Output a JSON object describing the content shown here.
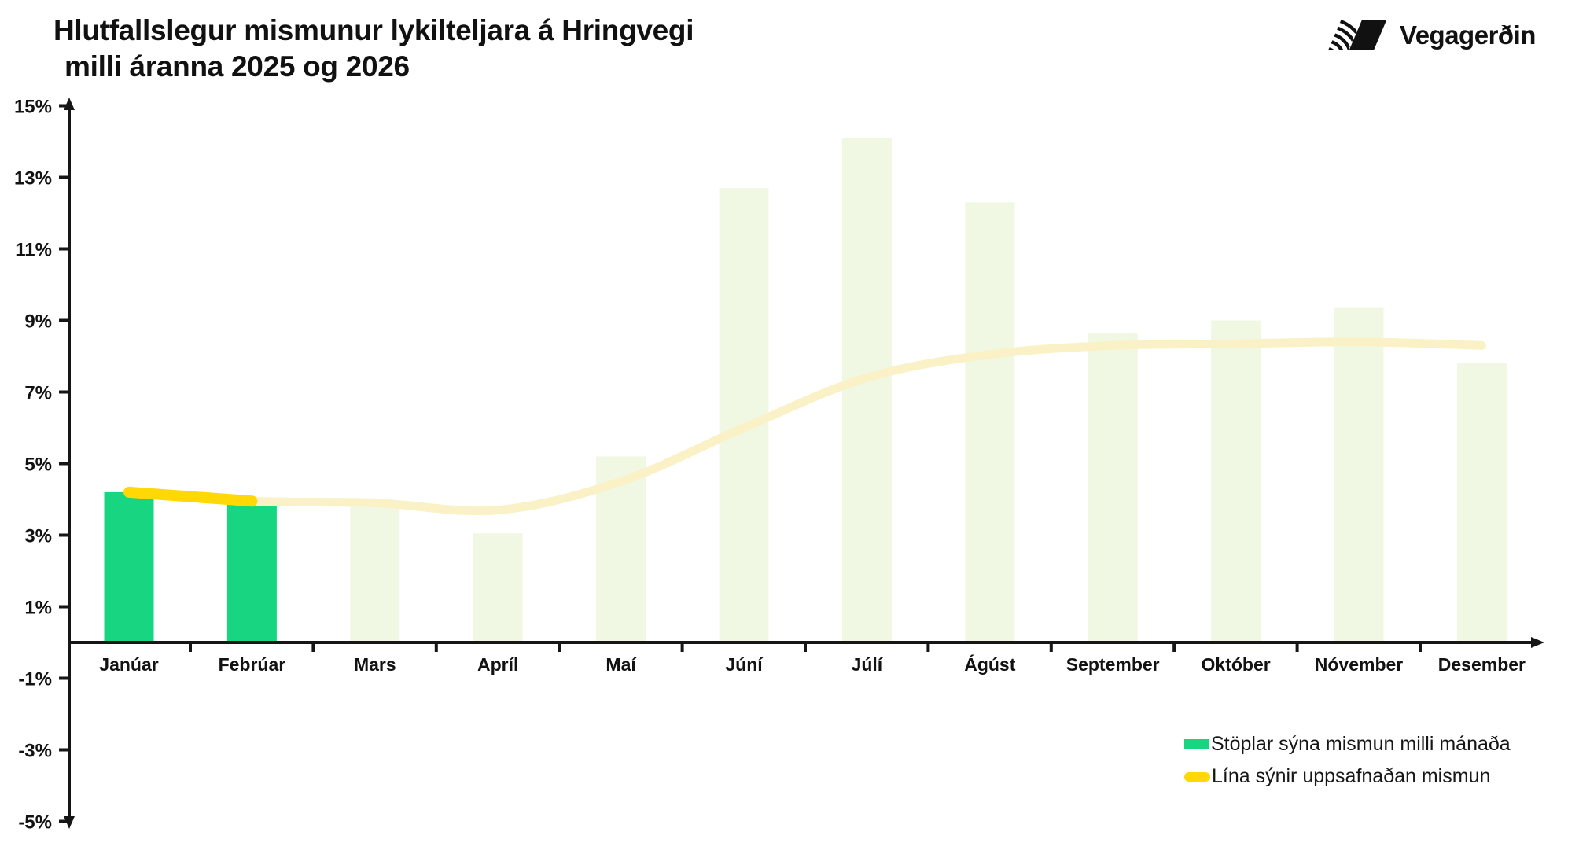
{
  "title": {
    "line1": "Hlutfallslegur mismunur lykilteljara á Hringvegi",
    "line2": "milli áranna 2025 og 2026"
  },
  "logo": {
    "text": "Vegagerðin"
  },
  "chart_data": {
    "type": "bar",
    "title": "Hlutfallslegur mismunur lykilteljara á Hringvegi milli áranna 2025 og 2026",
    "categories": [
      "Janúar",
      "Febrúar",
      "Mars",
      "Apríl",
      "Maí",
      "Júní",
      "Júlí",
      "Ágúst",
      "September",
      "Október",
      "Nóvember",
      "Desember"
    ],
    "series": [
      {
        "name": "Stöplar sýna mismun milli mánaða",
        "type": "bar",
        "values": [
          4.2,
          3.85,
          3.9,
          3.05,
          5.2,
          12.7,
          14.1,
          12.3,
          8.65,
          9.0,
          9.35,
          7.8
        ],
        "actual_months": 2
      },
      {
        "name": "Lína sýnir uppsafnaðan mismun",
        "type": "line",
        "values": [
          4.2,
          3.95,
          3.9,
          3.7,
          4.5,
          6.0,
          7.4,
          8.05,
          8.3,
          8.35,
          8.4,
          8.3
        ],
        "solid_months": 2
      }
    ],
    "xlabel": "",
    "ylabel": "",
    "ylim": [
      -5,
      15
    ],
    "ytick_values": [
      15,
      13,
      11,
      9,
      7,
      5,
      3,
      1,
      -1,
      -3,
      -5
    ],
    "ytick_suffix": "%",
    "grid": false,
    "legend_position": "bottom-right",
    "colors": {
      "bar_actual": "#17d581",
      "bar_projected": "#f0f8e3",
      "line_solid": "#ffd806",
      "line_faded": "#faf2c6",
      "axis": "#161616"
    }
  }
}
